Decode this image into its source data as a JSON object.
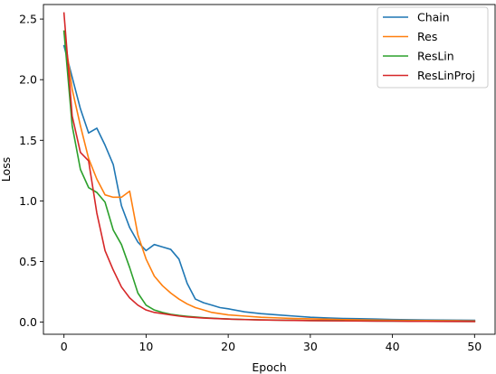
{
  "chart_data": {
    "type": "line",
    "xlabel": "Epoch",
    "ylabel": "Loss",
    "xlim": [
      -2.5,
      52.5
    ],
    "ylim": [
      -0.1,
      2.62
    ],
    "xticks": [
      0,
      10,
      20,
      30,
      40,
      50
    ],
    "yticks": [
      0.0,
      0.5,
      1.0,
      1.5,
      2.0,
      2.5
    ],
    "xtick_labels": [
      "0",
      "10",
      "20",
      "30",
      "40",
      "50"
    ],
    "ytick_labels": [
      "0.0",
      "0.5",
      "1.0",
      "1.5",
      "2.0",
      "2.5"
    ],
    "grid": false,
    "legend_position": "top-right",
    "series": [
      {
        "name": "Chain",
        "color": "#1f77b4",
        "x": [
          0,
          1,
          2,
          3,
          4,
          5,
          6,
          7,
          8,
          9,
          10,
          11,
          12,
          13,
          14,
          15,
          16,
          17,
          18,
          19,
          20,
          22,
          24,
          26,
          28,
          30,
          32,
          34,
          36,
          38,
          40,
          42,
          44,
          46,
          48,
          50
        ],
        "y": [
          2.28,
          2.02,
          1.76,
          1.56,
          1.6,
          1.46,
          1.3,
          0.96,
          0.78,
          0.66,
          0.59,
          0.64,
          0.62,
          0.6,
          0.52,
          0.32,
          0.19,
          0.16,
          0.14,
          0.12,
          0.11,
          0.085,
          0.07,
          0.06,
          0.05,
          0.04,
          0.035,
          0.03,
          0.028,
          0.025,
          0.022,
          0.02,
          0.018,
          0.017,
          0.016,
          0.015
        ]
      },
      {
        "name": "Res",
        "color": "#ff7f0e",
        "x": [
          0,
          1,
          2,
          3,
          4,
          5,
          6,
          7,
          8,
          9,
          10,
          11,
          12,
          13,
          14,
          15,
          16,
          17,
          18,
          19,
          20,
          22,
          24,
          26,
          28,
          30,
          32,
          34,
          36,
          38,
          40,
          42,
          44,
          46,
          48,
          50
        ],
        "y": [
          2.4,
          1.92,
          1.62,
          1.35,
          1.18,
          1.05,
          1.03,
          1.03,
          1.08,
          0.72,
          0.52,
          0.38,
          0.3,
          0.24,
          0.19,
          0.15,
          0.12,
          0.1,
          0.08,
          0.07,
          0.06,
          0.05,
          0.04,
          0.035,
          0.03,
          0.027,
          0.024,
          0.021,
          0.019,
          0.017,
          0.015,
          0.014,
          0.013,
          0.012,
          0.011,
          0.01
        ]
      },
      {
        "name": "ResLin",
        "color": "#2ca02c",
        "x": [
          0,
          1,
          2,
          3,
          4,
          5,
          6,
          7,
          8,
          9,
          10,
          11,
          12,
          13,
          14,
          15,
          16,
          17,
          18,
          19,
          20,
          22,
          24,
          26,
          28,
          30,
          32,
          34,
          36,
          38,
          40,
          42,
          44,
          46,
          48,
          50
        ],
        "y": [
          2.4,
          1.62,
          1.26,
          1.11,
          1.07,
          0.99,
          0.76,
          0.64,
          0.45,
          0.24,
          0.14,
          0.1,
          0.08,
          0.065,
          0.055,
          0.048,
          0.042,
          0.037,
          0.033,
          0.029,
          0.026,
          0.022,
          0.019,
          0.017,
          0.015,
          0.013,
          0.012,
          0.011,
          0.01,
          0.009,
          0.008,
          0.008,
          0.007,
          0.007,
          0.006,
          0.006
        ]
      },
      {
        "name": "ResLinProj",
        "color": "#d62728",
        "x": [
          0,
          1,
          2,
          3,
          4,
          5,
          6,
          7,
          8,
          9,
          10,
          11,
          12,
          13,
          14,
          15,
          16,
          17,
          18,
          19,
          20,
          22,
          24,
          26,
          28,
          30,
          32,
          34,
          36,
          38,
          40,
          42,
          44,
          46,
          48,
          50
        ],
        "y": [
          2.55,
          1.7,
          1.4,
          1.33,
          0.9,
          0.59,
          0.43,
          0.29,
          0.2,
          0.14,
          0.1,
          0.08,
          0.07,
          0.06,
          0.05,
          0.043,
          0.038,
          0.034,
          0.031,
          0.028,
          0.025,
          0.021,
          0.018,
          0.016,
          0.014,
          0.012,
          0.011,
          0.01,
          0.009,
          0.008,
          0.008,
          0.007,
          0.007,
          0.006,
          0.006,
          0.005
        ]
      }
    ]
  }
}
